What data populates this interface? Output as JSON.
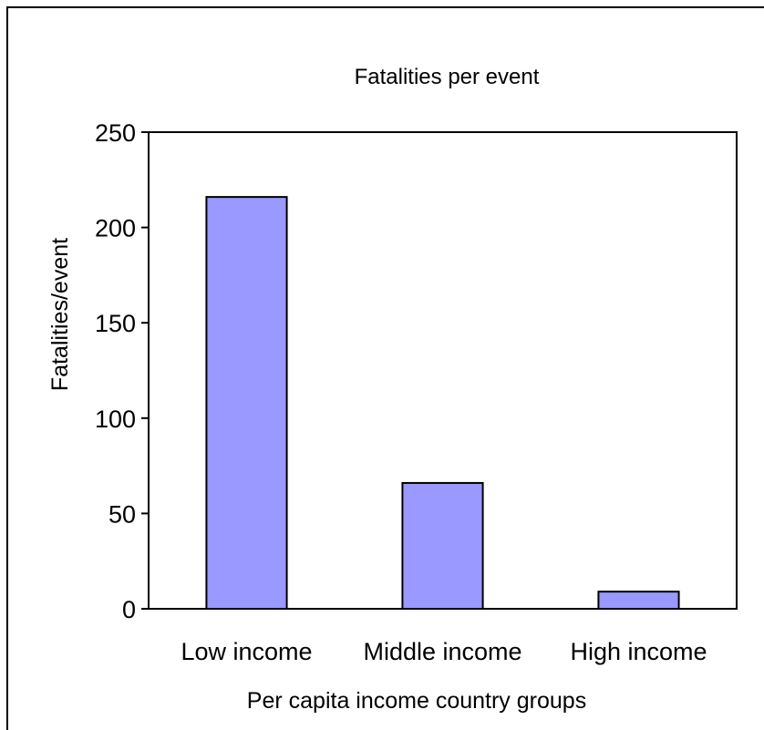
{
  "chart_data": {
    "type": "bar",
    "title": "Fatalities per event",
    "xlabel": "Per capita income country groups",
    "ylabel": "Fatalities/event",
    "categories": [
      "Low income",
      "Middle income",
      "High income"
    ],
    "values": [
      216,
      66,
      9
    ],
    "ylim": [
      0,
      250
    ],
    "yticks": [
      0,
      50,
      100,
      150,
      200,
      250
    ],
    "ytick_labels": [
      "0",
      "50",
      "100",
      "150",
      "200",
      "250"
    ],
    "grid": false,
    "legend": "none",
    "bar_color": "#9999ff",
    "bar_edge_color": "#000000"
  }
}
